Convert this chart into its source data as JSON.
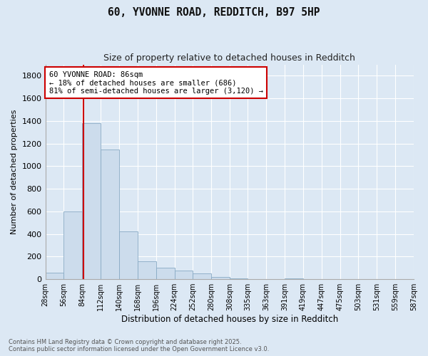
{
  "title1": "60, YVONNE ROAD, REDDITCH, B97 5HP",
  "title2": "Size of property relative to detached houses in Redditch",
  "xlabel": "Distribution of detached houses by size in Redditch",
  "ylabel": "Number of detached properties",
  "annotation_title": "60 YVONNE ROAD: 86sqm",
  "annotation_line1": "← 18% of detached houses are smaller (686)",
  "annotation_line2": "81% of semi-detached houses are larger (3,120) →",
  "vline_color": "#cc0000",
  "vline_x": 86,
  "bar_color": "#ccdcec",
  "bar_edge_color": "#88aac4",
  "background_color": "#dce8f4",
  "fig_background": "#dce8f4",
  "grid_color": "#ffffff",
  "bin_edges": [
    28,
    56,
    84,
    112,
    140,
    168,
    196,
    224,
    252,
    280,
    308,
    335,
    363,
    391,
    419,
    447,
    475,
    503,
    531,
    559,
    587
  ],
  "bin_labels": [
    "28sqm",
    "56sqm",
    "84sqm",
    "112sqm",
    "140sqm",
    "168sqm",
    "196sqm",
    "224sqm",
    "252sqm",
    "280sqm",
    "308sqm",
    "335sqm",
    "363sqm",
    "391sqm",
    "419sqm",
    "447sqm",
    "475sqm",
    "503sqm",
    "531sqm",
    "559sqm",
    "587sqm"
  ],
  "bar_heights": [
    60,
    600,
    1380,
    1150,
    420,
    160,
    100,
    75,
    50,
    20,
    5,
    0,
    0,
    5,
    0,
    0,
    0,
    0,
    0,
    0
  ],
  "ylim": [
    0,
    1900
  ],
  "yticks": [
    0,
    200,
    400,
    600,
    800,
    1000,
    1200,
    1400,
    1600,
    1800
  ],
  "footer1": "Contains HM Land Registry data © Crown copyright and database right 2025.",
  "footer2": "Contains public sector information licensed under the Open Government Licence v3.0."
}
